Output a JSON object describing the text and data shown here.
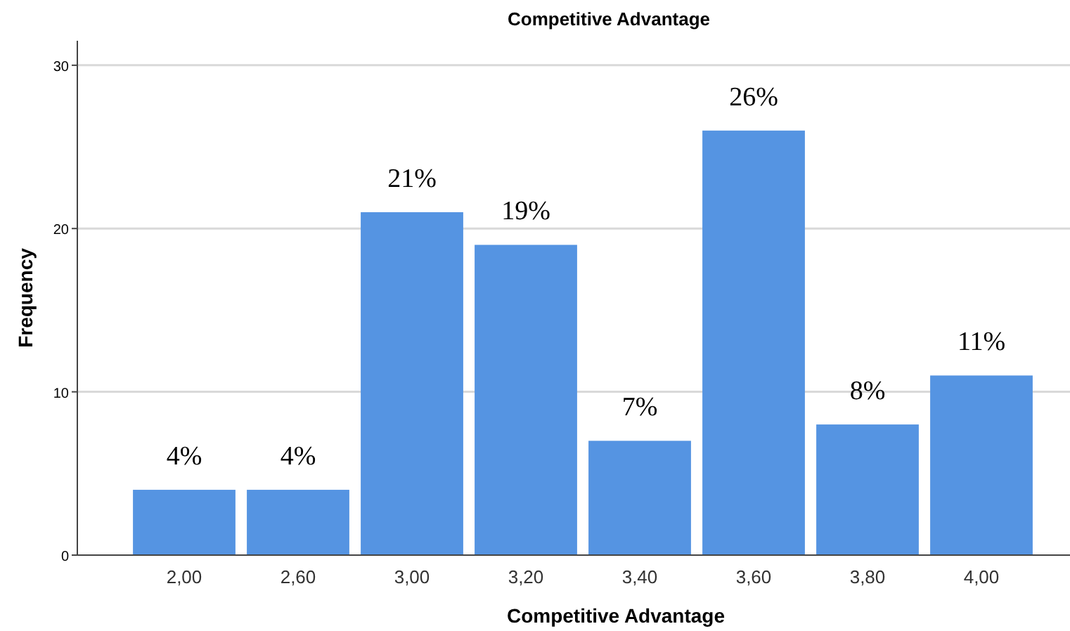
{
  "chart_data": {
    "type": "bar",
    "title": "Competitive Advantage",
    "xlabel": "Competitive Advantage",
    "ylabel": "Frequency",
    "categories": [
      "2,00",
      "2,60",
      "3,00",
      "3,20",
      "3,40",
      "3,60",
      "3,80",
      "4,00"
    ],
    "values": [
      4,
      4,
      21,
      19,
      7,
      26,
      8,
      11
    ],
    "value_labels": [
      "4%",
      "4%",
      "21%",
      "19%",
      "7%",
      "26%",
      "8%",
      "11%"
    ],
    "color": "#5594e2",
    "ylim": [
      0,
      31.5
    ],
    "yticks": [
      0,
      10,
      20,
      30
    ],
    "grid": "y"
  }
}
